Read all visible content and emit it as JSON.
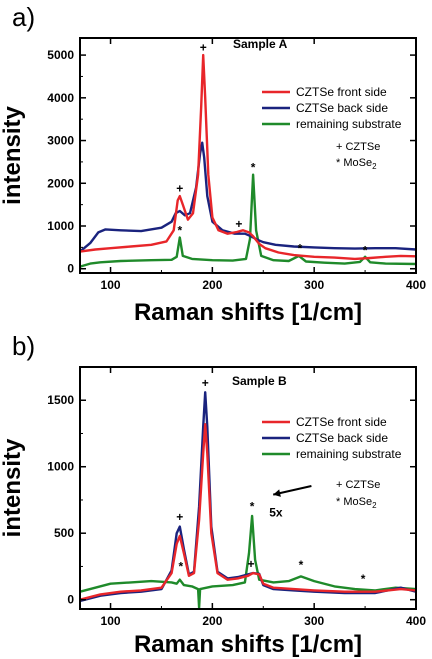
{
  "chart_data": [
    {
      "type": "line",
      "panel_label": "a)",
      "title": "Sample A",
      "xlabel": "Raman shifts [1/cm]",
      "ylabel": "intensity",
      "xlim": [
        70,
        400
      ],
      "ylim": [
        -100,
        5400
      ],
      "x_ticks": [
        100,
        200,
        300,
        400
      ],
      "y_ticks": [
        0,
        1000,
        2000,
        3000,
        4000,
        5000
      ],
      "grid": false,
      "legend_position": "top-right",
      "colors": {
        "front": "#e8262a",
        "back": "#1a237e",
        "substrate": "#1f8a2a"
      },
      "series": [
        {
          "name": "CZTSe front side",
          "color": "#e8262a",
          "points": [
            [
              70,
              400
            ],
            [
              85,
              450
            ],
            [
              100,
              480
            ],
            [
              120,
              520
            ],
            [
              140,
              560
            ],
            [
              155,
              640
            ],
            [
              162,
              900
            ],
            [
              166,
              1600
            ],
            [
              168,
              1700
            ],
            [
              171,
              1500
            ],
            [
              176,
              1150
            ],
            [
              181,
              1300
            ],
            [
              186,
              2200
            ],
            [
              189,
              3800
            ],
            [
              191,
              5000
            ],
            [
              193,
              4000
            ],
            [
              196,
              2200
            ],
            [
              200,
              1200
            ],
            [
              206,
              900
            ],
            [
              215,
              820
            ],
            [
              224,
              860
            ],
            [
              230,
              900
            ],
            [
              236,
              850
            ],
            [
              240,
              760
            ],
            [
              246,
              580
            ],
            [
              252,
              480
            ],
            [
              265,
              380
            ],
            [
              280,
              320
            ],
            [
              300,
              280
            ],
            [
              320,
              260
            ],
            [
              340,
              230
            ],
            [
              355,
              250
            ],
            [
              370,
              280
            ],
            [
              385,
              300
            ],
            [
              400,
              290
            ]
          ]
        },
        {
          "name": "CZTSe back side",
          "color": "#1a237e",
          "points": [
            [
              70,
              400
            ],
            [
              80,
              600
            ],
            [
              88,
              850
            ],
            [
              95,
              920
            ],
            [
              110,
              900
            ],
            [
              130,
              880
            ],
            [
              150,
              960
            ],
            [
              160,
              1100
            ],
            [
              164,
              1300
            ],
            [
              168,
              1350
            ],
            [
              173,
              1250
            ],
            [
              178,
              1300
            ],
            [
              184,
              1900
            ],
            [
              188,
              2700
            ],
            [
              190,
              2950
            ],
            [
              192,
              2600
            ],
            [
              195,
              1700
            ],
            [
              200,
              1100
            ],
            [
              210,
              900
            ],
            [
              222,
              820
            ],
            [
              232,
              820
            ],
            [
              238,
              760
            ],
            [
              244,
              680
            ],
            [
              250,
              620
            ],
            [
              262,
              560
            ],
            [
              280,
              520
            ],
            [
              300,
              500
            ],
            [
              320,
              480
            ],
            [
              340,
              470
            ],
            [
              360,
              480
            ],
            [
              380,
              480
            ],
            [
              400,
              450
            ]
          ]
        },
        {
          "name": "remaining substrate",
          "color": "#1f8a2a",
          "points": [
            [
              70,
              50
            ],
            [
              80,
              120
            ],
            [
              90,
              150
            ],
            [
              110,
              180
            ],
            [
              140,
              200
            ],
            [
              160,
              210
            ],
            [
              165,
              280
            ],
            [
              168,
              730
            ],
            [
              171,
              300
            ],
            [
              180,
              230
            ],
            [
              200,
              200
            ],
            [
              220,
              190
            ],
            [
              233,
              230
            ],
            [
              237,
              700
            ],
            [
              240,
              2200
            ],
            [
              243,
              900
            ],
            [
              248,
              300
            ],
            [
              260,
              200
            ],
            [
              275,
              180
            ],
            [
              285,
              300
            ],
            [
              292,
              170
            ],
            [
              310,
              140
            ],
            [
              330,
              120
            ],
            [
              345,
              160
            ],
            [
              350,
              280
            ],
            [
              355,
              150
            ],
            [
              370,
              120
            ],
            [
              400,
              110
            ]
          ]
        }
      ],
      "marker_labels": [
        {
          "text": "+",
          "x": 191,
          "y": 5080
        },
        {
          "text": "+",
          "x": 168,
          "y": 1780
        },
        {
          "text": "*",
          "x": 168,
          "y": 800
        },
        {
          "text": "+",
          "x": 226,
          "y": 950
        },
        {
          "text": "*",
          "x": 240,
          "y": 2280
        },
        {
          "text": "*",
          "x": 286,
          "y": 380
        },
        {
          "text": "*",
          "x": 350,
          "y": 330
        }
      ],
      "notes": [
        "+ CZTSe",
        "* MoSe2"
      ],
      "notes_position": "right"
    },
    {
      "type": "line",
      "panel_label": "b)",
      "title": "Sample B",
      "xlabel": "Raman shifts [1/cm]",
      "ylabel": "intensity",
      "xlim": [
        70,
        400
      ],
      "ylim": [
        -70,
        1750
      ],
      "x_ticks": [
        100,
        200,
        300,
        400
      ],
      "y_ticks": [
        0,
        500,
        1000,
        1500
      ],
      "grid": false,
      "legend_position": "top-right",
      "colors": {
        "front": "#e8262a",
        "back": "#1a237e",
        "substrate": "#1f8a2a"
      },
      "series": [
        {
          "name": "CZTSe front side",
          "color": "#e8262a",
          "points": [
            [
              70,
              0
            ],
            [
              90,
              40
            ],
            [
              110,
              60
            ],
            [
              130,
              70
            ],
            [
              150,
              90
            ],
            [
              160,
              200
            ],
            [
              165,
              420
            ],
            [
              168,
              480
            ],
            [
              172,
              350
            ],
            [
              177,
              180
            ],
            [
              182,
              200
            ],
            [
              187,
              600
            ],
            [
              191,
              1100
            ],
            [
              193,
              1320
            ],
            [
              195,
              1100
            ],
            [
              199,
              500
            ],
            [
              205,
              200
            ],
            [
              215,
              150
            ],
            [
              225,
              160
            ],
            [
              235,
              180
            ],
            [
              240,
              200
            ],
            [
              246,
              190
            ],
            [
              250,
              120
            ],
            [
              260,
              90
            ],
            [
              280,
              80
            ],
            [
              300,
              70
            ],
            [
              330,
              60
            ],
            [
              360,
              60
            ],
            [
              385,
              80
            ],
            [
              400,
              70
            ]
          ]
        },
        {
          "name": "CZTSe back side",
          "color": "#1a237e",
          "points": [
            [
              70,
              -10
            ],
            [
              90,
              30
            ],
            [
              110,
              50
            ],
            [
              130,
              60
            ],
            [
              150,
              80
            ],
            [
              160,
              220
            ],
            [
              165,
              500
            ],
            [
              168,
              550
            ],
            [
              172,
              380
            ],
            [
              177,
              190
            ],
            [
              182,
              210
            ],
            [
              187,
              700
            ],
            [
              191,
              1300
            ],
            [
              193,
              1560
            ],
            [
              195,
              1300
            ],
            [
              199,
              550
            ],
            [
              205,
              210
            ],
            [
              215,
              160
            ],
            [
              225,
              170
            ],
            [
              235,
              190
            ],
            [
              240,
              200
            ],
            [
              246,
              195
            ],
            [
              250,
              110
            ],
            [
              260,
              80
            ],
            [
              280,
              70
            ],
            [
              300,
              60
            ],
            [
              330,
              50
            ],
            [
              360,
              50
            ],
            [
              385,
              90
            ],
            [
              400,
              60
            ]
          ]
        },
        {
          "name": "remaining substrate",
          "color": "#1f8a2a",
          "points": [
            [
              70,
              60
            ],
            [
              85,
              90
            ],
            [
              100,
              120
            ],
            [
              120,
              130
            ],
            [
              140,
              140
            ],
            [
              160,
              130
            ],
            [
              165,
              120
            ],
            [
              168,
              150
            ],
            [
              172,
              110
            ],
            [
              180,
              100
            ],
            [
              186,
              80
            ],
            [
              187,
              -60
            ],
            [
              188,
              80
            ],
            [
              200,
              100
            ],
            [
              220,
              110
            ],
            [
              232,
              130
            ],
            [
              236,
              350
            ],
            [
              239,
              630
            ],
            [
              242,
              300
            ],
            [
              246,
              150
            ],
            [
              260,
              130
            ],
            [
              275,
              140
            ],
            [
              287,
              175
            ],
            [
              300,
              140
            ],
            [
              320,
              100
            ],
            [
              340,
              80
            ],
            [
              360,
              70
            ],
            [
              380,
              90
            ],
            [
              400,
              80
            ]
          ]
        }
      ],
      "marker_labels": [
        {
          "text": "+",
          "x": 193,
          "y": 1600
        },
        {
          "text": "+",
          "x": 168,
          "y": 590
        },
        {
          "text": "*",
          "x": 169,
          "y": 220
        },
        {
          "text": "*",
          "x": 239,
          "y": 670
        },
        {
          "text": "+",
          "x": 238,
          "y": 240
        },
        {
          "text": "*",
          "x": 287,
          "y": 230
        },
        {
          "text": "*",
          "x": 348,
          "y": 125
        }
      ],
      "annotation": {
        "text": "5x",
        "arrow_from": [
          258,
          930
        ],
        "arrow_to": [
          246,
          700
        ]
      },
      "notes": [
        "+ CZTSe",
        "* MoSe2"
      ],
      "notes_position": "right"
    }
  ]
}
